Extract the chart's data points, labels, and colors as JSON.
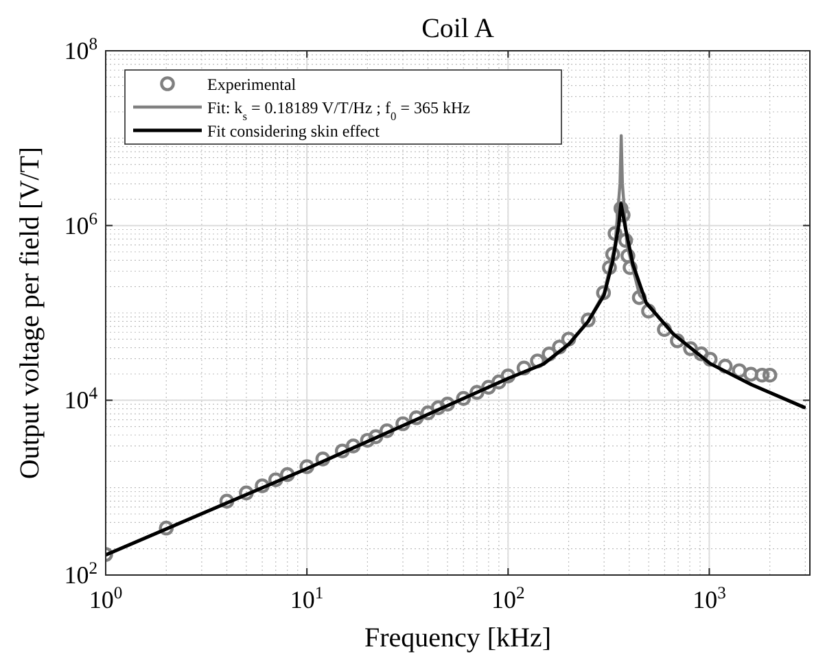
{
  "chart_data": {
    "type": "line",
    "title": "Coil A",
    "xlabel": "Frequency [kHz]",
    "ylabel": "Output voltage per field [V/T]",
    "log": "xy",
    "grid": true,
    "legend": "top left",
    "xlim": [
      1,
      3162
    ],
    "xticks": [
      {
        "value": 1,
        "label": "10$^{0}$"
      },
      {
        "value": 10,
        "label": "10$^{1}$"
      },
      {
        "value": 100,
        "label": "10$^{2}$"
      },
      {
        "value": 1000,
        "label": "10$^{3}$"
      }
    ],
    "ylim": [
      100,
      100000000
    ],
    "yticks": [
      {
        "value": 100,
        "label": "10$^{2}$"
      },
      {
        "value": 10000,
        "label": "10$^{4}$"
      },
      {
        "value": 1000000,
        "label": "10$^{6}$"
      },
      {
        "value": 100000000,
        "label": "10$^{8}$"
      }
    ],
    "series": [
      {
        "name": "Experimental",
        "type": "scatter",
        "marker": "circle",
        "color": "#808080",
        "x": [
          1,
          2,
          4,
          5,
          6,
          7,
          8,
          10,
          12,
          15,
          17,
          20,
          22,
          25,
          30,
          35,
          40,
          45,
          50,
          60,
          70,
          80,
          90,
          100,
          120,
          140,
          160,
          180,
          200,
          250,
          298,
          319,
          331,
          340,
          364,
          373,
          384,
          394,
          404,
          449,
          499,
          598,
          694,
          807,
          912,
          1010,
          1200,
          1410,
          1610,
          1830,
          2000
        ],
        "values": [
          172,
          345,
          700,
          870,
          1050,
          1230,
          1410,
          1740,
          2130,
          2630,
          3000,
          3480,
          3830,
          4480,
          5390,
          6310,
          7180,
          8230,
          9040,
          10500,
          12300,
          14100,
          16200,
          19000,
          23400,
          28200,
          33900,
          40700,
          50100,
          83000,
          170000,
          330000,
          470000,
          810000,
          1570000,
          1320000,
          676000,
          450000,
          330000,
          150000,
          105000,
          64600,
          48000,
          39000,
          34000,
          29500,
          24600,
          21800,
          19900,
          19400,
          19400
        ]
      },
      {
        "name": "Fit: k$_{s}$ = 0.18189 V/T/Hz ; f$_{0}$ = 365 kHz",
        "marker": "none",
        "line_style": "solid",
        "color": "#808080",
        "x": [
          1,
          10,
          100,
          150,
          200,
          250,
          300,
          340,
          360,
          365,
          370,
          390,
          450,
          662,
          1010,
          1620,
          2960
        ],
        "values": [
          170,
          1650,
          17800,
          26000,
          43700,
          80000,
          170000,
          600000,
          3000000,
          10700000,
          3000000,
          600000,
          160000,
          57500,
          26300,
          15100,
          8300
        ]
      },
      {
        "name": "Fit considering skin effect",
        "marker": "none",
        "line_style": "solid",
        "color": "#000000",
        "x": [
          1,
          10,
          100,
          150,
          200,
          250,
          300,
          331,
          355,
          364,
          384,
          417,
          486,
          662,
          1010,
          1620,
          2960
        ],
        "values": [
          170,
          1650,
          17800,
          26000,
          43700,
          80000,
          160000,
          390000,
          1020000,
          1780000,
          910000,
          360000,
          130000,
          57500,
          26300,
          15100,
          8300
        ]
      }
    ]
  }
}
